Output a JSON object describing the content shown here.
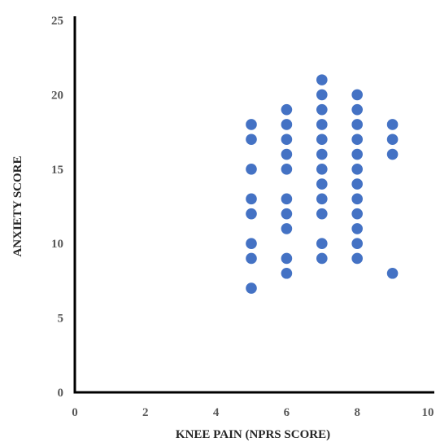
{
  "chart_data": {
    "type": "scatter",
    "title": "",
    "xlabel": "KNEE PAIN (NPRS SCORE)",
    "ylabel": "ANXIETY SCORE",
    "xlim": [
      0,
      10
    ],
    "ylim": [
      0,
      25
    ],
    "xticks": [
      "0",
      "2",
      "4",
      "6",
      "8",
      "10"
    ],
    "yticks": [
      "0",
      "5",
      "10",
      "15",
      "20",
      "25"
    ],
    "grid": false,
    "legend": "none",
    "marker_color": "#4472C4",
    "points": [
      {
        "x": 5,
        "y": 18
      },
      {
        "x": 5,
        "y": 17
      },
      {
        "x": 5,
        "y": 15
      },
      {
        "x": 5,
        "y": 13
      },
      {
        "x": 5,
        "y": 12
      },
      {
        "x": 5,
        "y": 10
      },
      {
        "x": 5,
        "y": 9
      },
      {
        "x": 5,
        "y": 7
      },
      {
        "x": 6,
        "y": 19
      },
      {
        "x": 6,
        "y": 18
      },
      {
        "x": 6,
        "y": 17
      },
      {
        "x": 6,
        "y": 16
      },
      {
        "x": 6,
        "y": 15
      },
      {
        "x": 6,
        "y": 13
      },
      {
        "x": 6,
        "y": 12
      },
      {
        "x": 6,
        "y": 11
      },
      {
        "x": 6,
        "y": 9
      },
      {
        "x": 6,
        "y": 8
      },
      {
        "x": 7,
        "y": 21
      },
      {
        "x": 7,
        "y": 20
      },
      {
        "x": 7,
        "y": 19
      },
      {
        "x": 7,
        "y": 18
      },
      {
        "x": 7,
        "y": 17
      },
      {
        "x": 7,
        "y": 16
      },
      {
        "x": 7,
        "y": 15
      },
      {
        "x": 7,
        "y": 14
      },
      {
        "x": 7,
        "y": 13
      },
      {
        "x": 7,
        "y": 12
      },
      {
        "x": 7,
        "y": 10
      },
      {
        "x": 7,
        "y": 9
      },
      {
        "x": 8,
        "y": 20
      },
      {
        "x": 8,
        "y": 19
      },
      {
        "x": 8,
        "y": 18
      },
      {
        "x": 8,
        "y": 17
      },
      {
        "x": 8,
        "y": 16
      },
      {
        "x": 8,
        "y": 15
      },
      {
        "x": 8,
        "y": 14
      },
      {
        "x": 8,
        "y": 13
      },
      {
        "x": 8,
        "y": 12
      },
      {
        "x": 8,
        "y": 11
      },
      {
        "x": 8,
        "y": 10
      },
      {
        "x": 8,
        "y": 9
      },
      {
        "x": 9,
        "y": 18
      },
      {
        "x": 9,
        "y": 17
      },
      {
        "x": 9,
        "y": 16
      },
      {
        "x": 9,
        "y": 8
      }
    ]
  }
}
